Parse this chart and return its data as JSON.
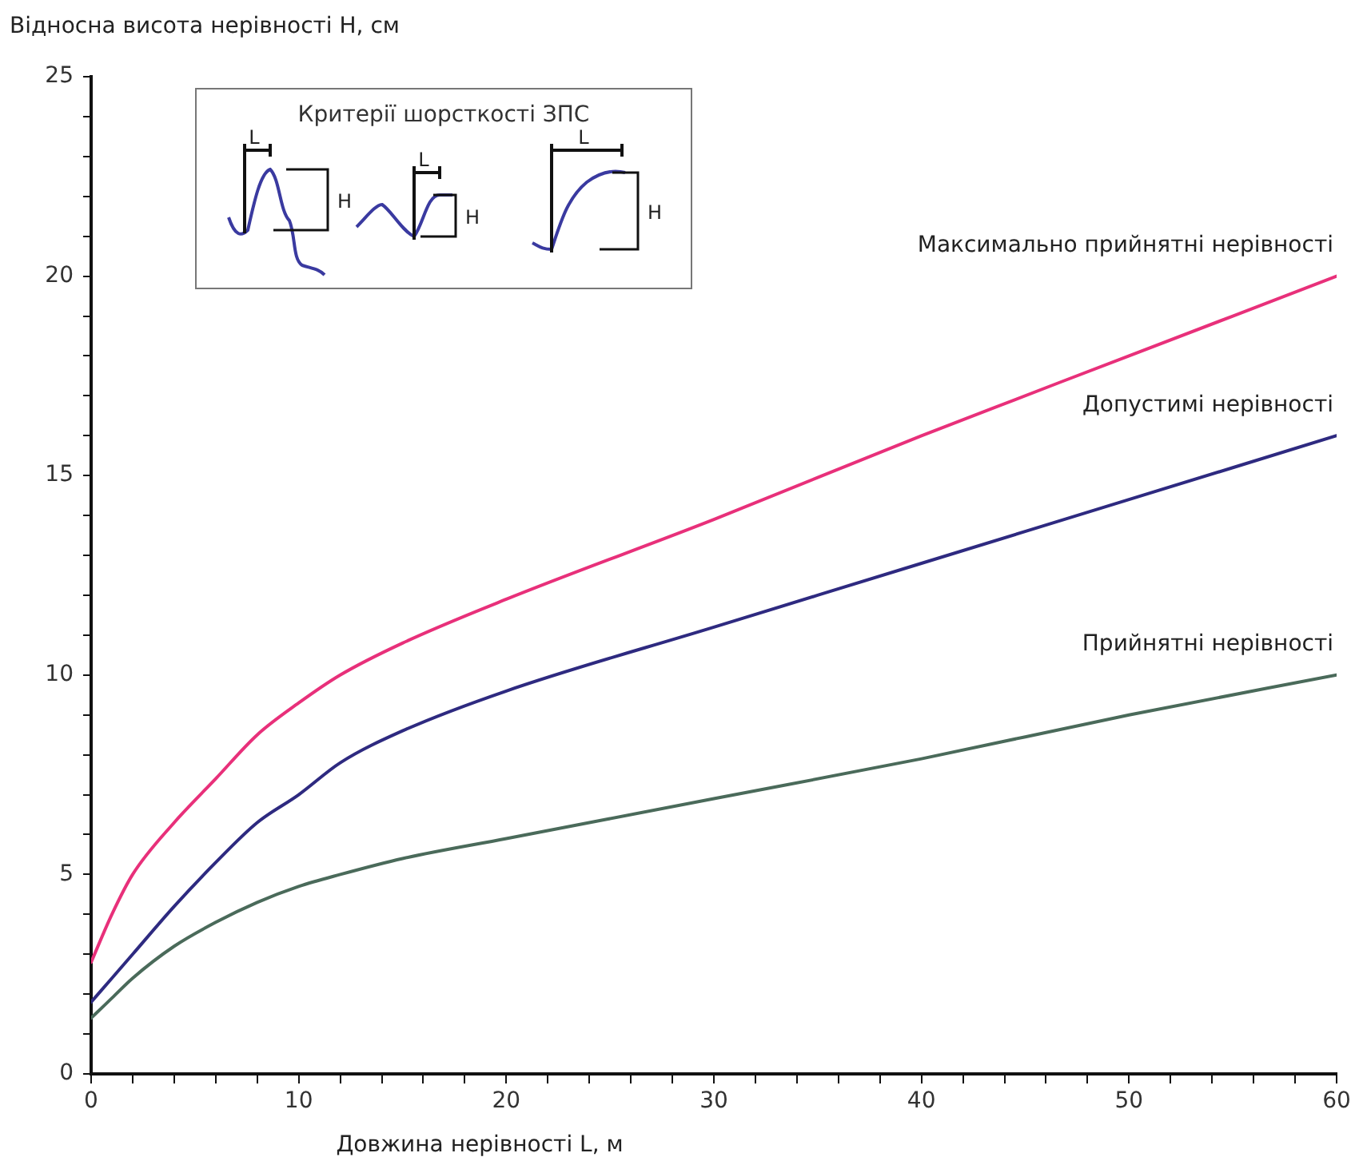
{
  "chart_data": {
    "type": "line",
    "ylabel": "Відносна висота нерівності H, см",
    "xlabel": "Довжина нерівності L, м",
    "annotations": [
      "Критерії шорсткості ЗПС",
      "L",
      "H",
      "L",
      "H",
      "L",
      "H"
    ],
    "x": [
      0,
      1,
      2,
      4,
      6,
      8,
      10,
      12,
      15,
      20,
      30,
      40,
      50,
      60
    ],
    "series": [
      {
        "name": "Максимально прийнятні нерівності",
        "color": "#e8307a",
        "values": [
          2.8,
          4.0,
          5.0,
          6.3,
          7.4,
          8.5,
          9.3,
          10.0,
          10.8,
          11.9,
          13.9,
          16.0,
          18.0,
          20.0
        ]
      },
      {
        "name": "Допустимі нерівності",
        "color": "#2e2a80",
        "values": [
          1.8,
          2.4,
          3.0,
          4.2,
          5.3,
          6.3,
          7.0,
          7.8,
          8.6,
          9.6,
          11.2,
          12.8,
          14.4,
          16.0
        ]
      },
      {
        "name": "Прийнятні нерівності",
        "color": "#4a6a5a",
        "values": [
          1.4,
          1.9,
          2.4,
          3.2,
          3.8,
          4.3,
          4.7,
          5.0,
          5.4,
          5.9,
          6.9,
          7.9,
          9.0,
          10.0
        ]
      }
    ],
    "xlim": [
      0,
      60
    ],
    "xticks": [
      0,
      {
        "value": 2,
        "label": null
      },
      {
        "value": 4,
        "label": null
      },
      {
        "value": 6,
        "label": null
      },
      {
        "value": 8,
        "label": null
      },
      10,
      {
        "value": 12,
        "label": null
      },
      {
        "value": 14,
        "label": null
      },
      {
        "value": 16,
        "label": null
      },
      {
        "value": 18,
        "label": null
      },
      20,
      {
        "value": 22,
        "label": null
      },
      {
        "value": 24,
        "label": null
      },
      {
        "value": 26,
        "label": null
      },
      {
        "value": 28,
        "label": null
      },
      30,
      {
        "value": 32,
        "label": null
      },
      {
        "value": 34,
        "label": null
      },
      {
        "value": 36,
        "label": null
      },
      {
        "value": 38,
        "label": null
      },
      40,
      {
        "value": 42,
        "label": null
      },
      {
        "value": 44,
        "label": null
      },
      {
        "value": 46,
        "label": null
      },
      {
        "value": 48,
        "label": null
      },
      50,
      {
        "value": 52,
        "label": null
      },
      {
        "value": 54,
        "label": null
      },
      {
        "value": 56,
        "label": null
      },
      {
        "value": 58,
        "label": null
      },
      60
    ],
    "ylim": [
      0,
      25
    ],
    "yticks": [
      0,
      {
        "value": 1,
        "label": null
      },
      {
        "value": 2,
        "label": null
      },
      {
        "value": 3,
        "label": null
      },
      {
        "value": 4,
        "label": null
      },
      5,
      {
        "value": 6,
        "label": null
      },
      {
        "value": 7,
        "label": null
      },
      {
        "value": 8,
        "label": null
      },
      {
        "value": 9,
        "label": null
      },
      10,
      {
        "value": 11,
        "label": null
      },
      {
        "value": 12,
        "label": null
      },
      {
        "value": 13,
        "label": null
      },
      {
        "value": 14,
        "label": null
      },
      15,
      {
        "value": 16,
        "label": null
      },
      {
        "value": 17,
        "label": null
      },
      {
        "value": 18,
        "label": null
      },
      {
        "value": 19,
        "label": null
      },
      20,
      {
        "value": 21,
        "label": null
      },
      {
        "value": 22,
        "label": null
      },
      {
        "value": 23,
        "label": null
      },
      {
        "value": 24,
        "label": null
      },
      25
    ],
    "grid": false,
    "legend": false,
    "marker": "none",
    "line_style": "solid"
  }
}
